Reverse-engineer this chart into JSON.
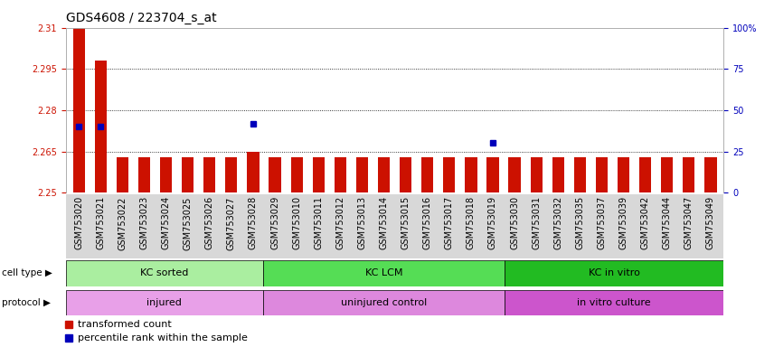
{
  "title": "GDS4608 / 223704_s_at",
  "samples": [
    "GSM753020",
    "GSM753021",
    "GSM753022",
    "GSM753023",
    "GSM753024",
    "GSM753025",
    "GSM753026",
    "GSM753027",
    "GSM753028",
    "GSM753029",
    "GSM753010",
    "GSM753011",
    "GSM753012",
    "GSM753013",
    "GSM753014",
    "GSM753015",
    "GSM753016",
    "GSM753017",
    "GSM753018",
    "GSM753019",
    "GSM753030",
    "GSM753031",
    "GSM753032",
    "GSM753035",
    "GSM753037",
    "GSM753039",
    "GSM753042",
    "GSM753044",
    "GSM753047",
    "GSM753049"
  ],
  "red_values": [
    2.31,
    2.298,
    2.263,
    2.263,
    2.263,
    2.263,
    2.263,
    2.263,
    2.265,
    2.263,
    2.263,
    2.263,
    2.263,
    2.263,
    2.263,
    2.263,
    2.263,
    2.263,
    2.263,
    2.263,
    2.263,
    2.263,
    2.263,
    2.263,
    2.263,
    2.263,
    2.263,
    2.263,
    2.263,
    2.263
  ],
  "blue_percentiles": [
    40,
    40,
    null,
    null,
    null,
    null,
    null,
    null,
    42,
    null,
    null,
    null,
    null,
    null,
    null,
    null,
    null,
    null,
    null,
    30,
    null,
    null,
    null,
    null,
    null,
    null,
    null,
    null,
    null,
    null
  ],
  "ylim_left": [
    2.25,
    2.31
  ],
  "ylim_right": [
    0,
    100
  ],
  "yticks_left": [
    2.25,
    2.265,
    2.28,
    2.295,
    2.31
  ],
  "ytick_labels_left": [
    "2.25",
    "2.265",
    "2.28",
    "2.295",
    "2.31"
  ],
  "yticks_right": [
    0,
    25,
    50,
    75,
    100
  ],
  "ytick_labels_right": [
    "0",
    "25",
    "50",
    "75",
    "100%"
  ],
  "cell_type_groups": [
    {
      "label": "KC sorted",
      "start": 0,
      "end": 9,
      "color": "#aaeea0"
    },
    {
      "label": "KC LCM",
      "start": 9,
      "end": 20,
      "color": "#55dd55"
    },
    {
      "label": "KC in vitro",
      "start": 20,
      "end": 30,
      "color": "#22bb22"
    }
  ],
  "protocol_groups": [
    {
      "label": "injured",
      "start": 0,
      "end": 9,
      "color": "#e8a0e8"
    },
    {
      "label": "uninjured control",
      "start": 9,
      "end": 20,
      "color": "#dd88dd"
    },
    {
      "label": "in vitro culture",
      "start": 20,
      "end": 30,
      "color": "#cc55cc"
    }
  ],
  "bar_color": "#cc1100",
  "dot_color": "#0000bb",
  "xtick_bg": "#d8d8d8",
  "left_tick_color": "#cc1100",
  "right_tick_color": "#0000bb",
  "title_fontsize": 10,
  "tick_fontsize": 7,
  "band_fontsize": 8,
  "legend_fontsize": 8
}
